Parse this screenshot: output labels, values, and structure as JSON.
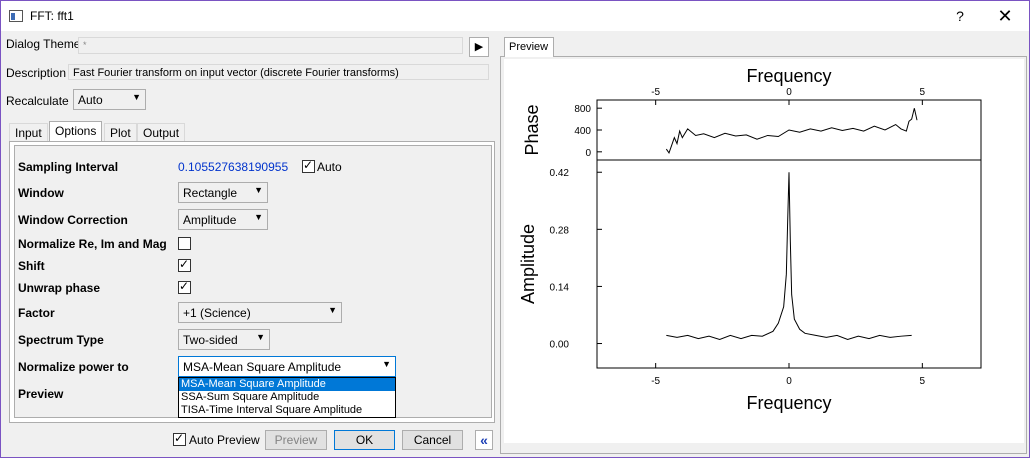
{
  "window": {
    "title": "FFT: fft1",
    "help_label": "?",
    "close_label": "✕",
    "border_color": "#7a53c2"
  },
  "dialog_theme": {
    "label": "Dialog Theme",
    "value": "*",
    "arrow_label": "▶"
  },
  "description": {
    "label": "Description",
    "value": "Fast Fourier transform on input vector (discrete Fourier transforms)"
  },
  "recalculate": {
    "label": "Recalculate",
    "value": "Auto"
  },
  "tabs": [
    {
      "label": "Input"
    },
    {
      "label": "Options"
    },
    {
      "label": "Plot"
    },
    {
      "label": "Output"
    }
  ],
  "options": {
    "sampling_interval": {
      "label": "Sampling Interval",
      "value": "0.105527638190955",
      "auto_label": "Auto",
      "auto_checked": true
    },
    "window": {
      "label": "Window",
      "value": "Rectangle"
    },
    "window_correction": {
      "label": "Window Correction",
      "value": "Amplitude"
    },
    "normalize": {
      "label": "Normalize Re, Im and Mag",
      "checked": false
    },
    "shift": {
      "label": "Shift",
      "checked": true
    },
    "unwrap_phase": {
      "label": "Unwrap phase",
      "checked": true
    },
    "factor": {
      "label": "Factor",
      "value": "+1 (Science)"
    },
    "spectrum_type": {
      "label": "Spectrum Type",
      "value": "Two-sided"
    },
    "normalize_power": {
      "label": "Normalize power to",
      "value": "MSA-Mean Square Amplitude",
      "options": [
        "MSA-Mean Square Amplitude",
        "SSA-Sum Square Amplitude",
        "TISA-Time Interval Square Amplitude"
      ]
    },
    "preview_label": "Preview"
  },
  "footer": {
    "auto_preview_label": "Auto Preview",
    "auto_preview_checked": true,
    "preview_button": "Preview",
    "ok_button": "OK",
    "cancel_button": "Cancel",
    "collapse_label": "«"
  },
  "preview_panel": {
    "tab_label": "Preview"
  },
  "chart_data": [
    {
      "type": "line",
      "xlabel": "Frequency",
      "ylabel": "Phase",
      "x_ticks": [
        "-5",
        "0",
        "5"
      ],
      "y_ticks": [
        "800",
        "400",
        "0"
      ],
      "xlim": [
        -7.2,
        7.2
      ],
      "ylim": [
        -150,
        950
      ],
      "series": [
        {
          "x": [
            -4.6,
            -4.5,
            -4.4,
            -4.3,
            -4.2,
            -4.1,
            -4.0,
            -3.8,
            -3.5,
            -3.2,
            -2.8,
            -2.4,
            -2.0,
            -1.6,
            -1.2,
            -0.8,
            -0.4,
            0,
            0.4,
            0.8,
            1.2,
            1.6,
            2.0,
            2.4,
            2.8,
            3.2,
            3.6,
            4.0,
            4.2,
            4.4,
            4.5,
            4.6,
            4.7,
            4.8
          ],
          "y": [
            50,
            -20,
            120,
            260,
            150,
            380,
            260,
            420,
            300,
            330,
            260,
            340,
            290,
            310,
            230,
            300,
            280,
            400,
            360,
            420,
            380,
            440,
            390,
            430,
            380,
            470,
            400,
            500,
            420,
            380,
            560,
            600,
            800,
            580
          ]
        }
      ]
    },
    {
      "type": "line",
      "xlabel": "Frequency",
      "ylabel": "Amplitude",
      "x_ticks": [
        "-5",
        "0",
        "5"
      ],
      "y_ticks": [
        "0.42",
        "0.28",
        "0.14",
        "0.00"
      ],
      "xlim": [
        -7.2,
        7.2
      ],
      "ylim": [
        -0.06,
        0.45
      ],
      "series": [
        {
          "x": [
            -4.6,
            -4.2,
            -3.8,
            -3.4,
            -3.0,
            -2.6,
            -2.2,
            -1.8,
            -1.4,
            -1.0,
            -0.6,
            -0.4,
            -0.2,
            -0.1,
            -0.05,
            0,
            0.05,
            0.1,
            0.2,
            0.4,
            0.6,
            1.0,
            1.4,
            1.8,
            2.2,
            2.6,
            3.0,
            3.4,
            3.8,
            4.2,
            4.6
          ],
          "y": [
            0.02,
            0.015,
            0.02,
            0.012,
            0.018,
            0.01,
            0.02,
            0.012,
            0.02,
            0.018,
            0.03,
            0.05,
            0.09,
            0.17,
            0.3,
            0.42,
            0.25,
            0.12,
            0.06,
            0.035,
            0.025,
            0.02,
            0.015,
            0.02,
            0.01,
            0.018,
            0.012,
            0.02,
            0.015,
            0.018,
            0.02
          ]
        }
      ]
    }
  ]
}
